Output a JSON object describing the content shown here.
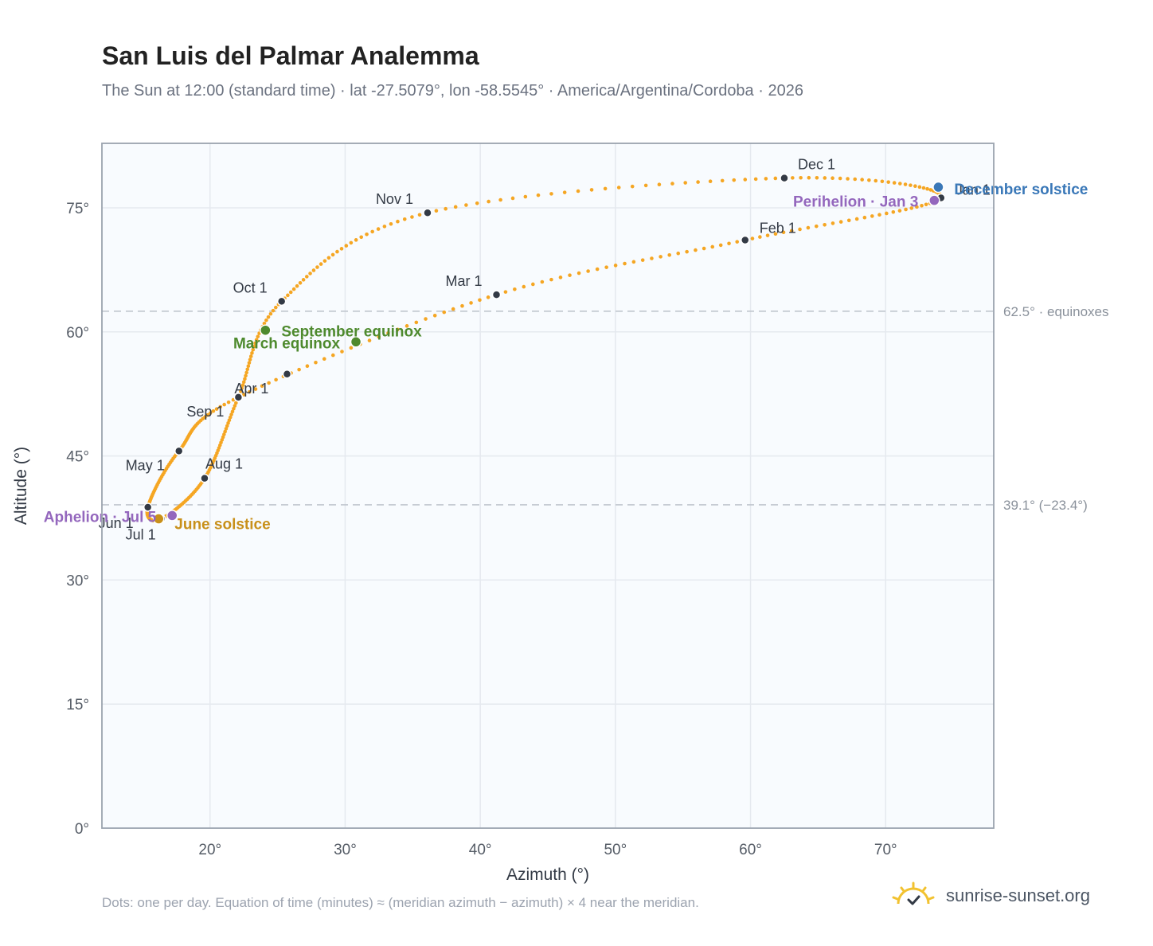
{
  "header": {
    "title": "San Luis del Palmar Analemma",
    "subtitle": "The Sun at 12:00 (standard time) · lat -27.5079°, lon -58.5545° · America/Argentina/Cordoba · 2026"
  },
  "footer": {
    "note": "Dots: one per day. Equation of time (minutes) ≈ (meridian azimuth − azimuth) × 4 near the meridian.",
    "brand": "sunrise-sunset.org"
  },
  "colors": {
    "analemma": "#f5a623",
    "month_marker": "#333a45",
    "equinox": "#4e8a2e",
    "solstice_june": "#c8901a",
    "solstice_december": "#3a78b8",
    "apsis": "#9467bd",
    "plot_background": "#f8fbfe",
    "grid": "#e5e9ef",
    "reference_line": "#c0c6ce"
  },
  "chart_data": {
    "type": "scatter",
    "xlabel": "Azimuth (°)",
    "ylabel": "Altitude (°)",
    "xlim": [
      12,
      78
    ],
    "ylim": [
      0,
      82.8
    ],
    "x_ticks": [
      20,
      30,
      40,
      50,
      60,
      70
    ],
    "x_tick_labels": [
      "20°",
      "30°",
      "40°",
      "50°",
      "60°",
      "70°"
    ],
    "y_ticks": [
      0,
      15,
      30,
      45,
      60,
      75
    ],
    "y_tick_labels": [
      "0°",
      "15°",
      "30°",
      "45°",
      "60°",
      "75°"
    ],
    "grid": true,
    "reference_lines": [
      {
        "y": 62.5,
        "label": "62.5° · equinoxes"
      },
      {
        "y": 39.1,
        "label": "39.1° (−23.4°)"
      }
    ],
    "month_markers": [
      {
        "label": "Jan 1",
        "az": 74.1,
        "alt": 76.2
      },
      {
        "label": "Feb 1",
        "az": 59.6,
        "alt": 71.1
      },
      {
        "label": "Mar 1",
        "az": 41.2,
        "alt": 64.5
      },
      {
        "label": "",
        "az": 25.7,
        "alt": 54.9
      },
      {
        "label": "Apr 1",
        "az": 22.1,
        "alt": 52.1
      },
      {
        "label": "May 1",
        "az": 17.7,
        "alt": 45.6
      },
      {
        "label": "Jun 1",
        "az": 15.4,
        "alt": 38.8
      },
      {
        "label": "Jul 1",
        "az": 16.4,
        "alt": 37.4
      },
      {
        "label": "Aug 1",
        "az": 19.6,
        "alt": 42.3
      },
      {
        "label": "Sep 1",
        "az": 22.1,
        "alt": 52.1
      },
      {
        "label": "Oct 1",
        "az": 25.3,
        "alt": 63.7
      },
      {
        "label": "Nov 1",
        "az": 36.1,
        "alt": 74.4
      },
      {
        "label": "Dec 1",
        "az": 62.5,
        "alt": 78.6
      }
    ],
    "events": [
      {
        "label": "March equinox",
        "az": 30.8,
        "alt": 58.8,
        "kind": "equinox"
      },
      {
        "label": "September equinox",
        "az": 24.1,
        "alt": 60.2,
        "kind": "equinox"
      },
      {
        "label": "June solstice",
        "az": 16.2,
        "alt": 37.4,
        "kind": "solstice_june"
      },
      {
        "label": "December solstice",
        "az": 73.9,
        "alt": 77.5,
        "kind": "solstice_december"
      },
      {
        "label": "Perihelion · Jan 3",
        "az": 73.6,
        "alt": 75.9,
        "kind": "apsis"
      },
      {
        "label": "Aphelion · Jul 5",
        "az": 17.2,
        "alt": 37.8,
        "kind": "apsis"
      }
    ]
  }
}
